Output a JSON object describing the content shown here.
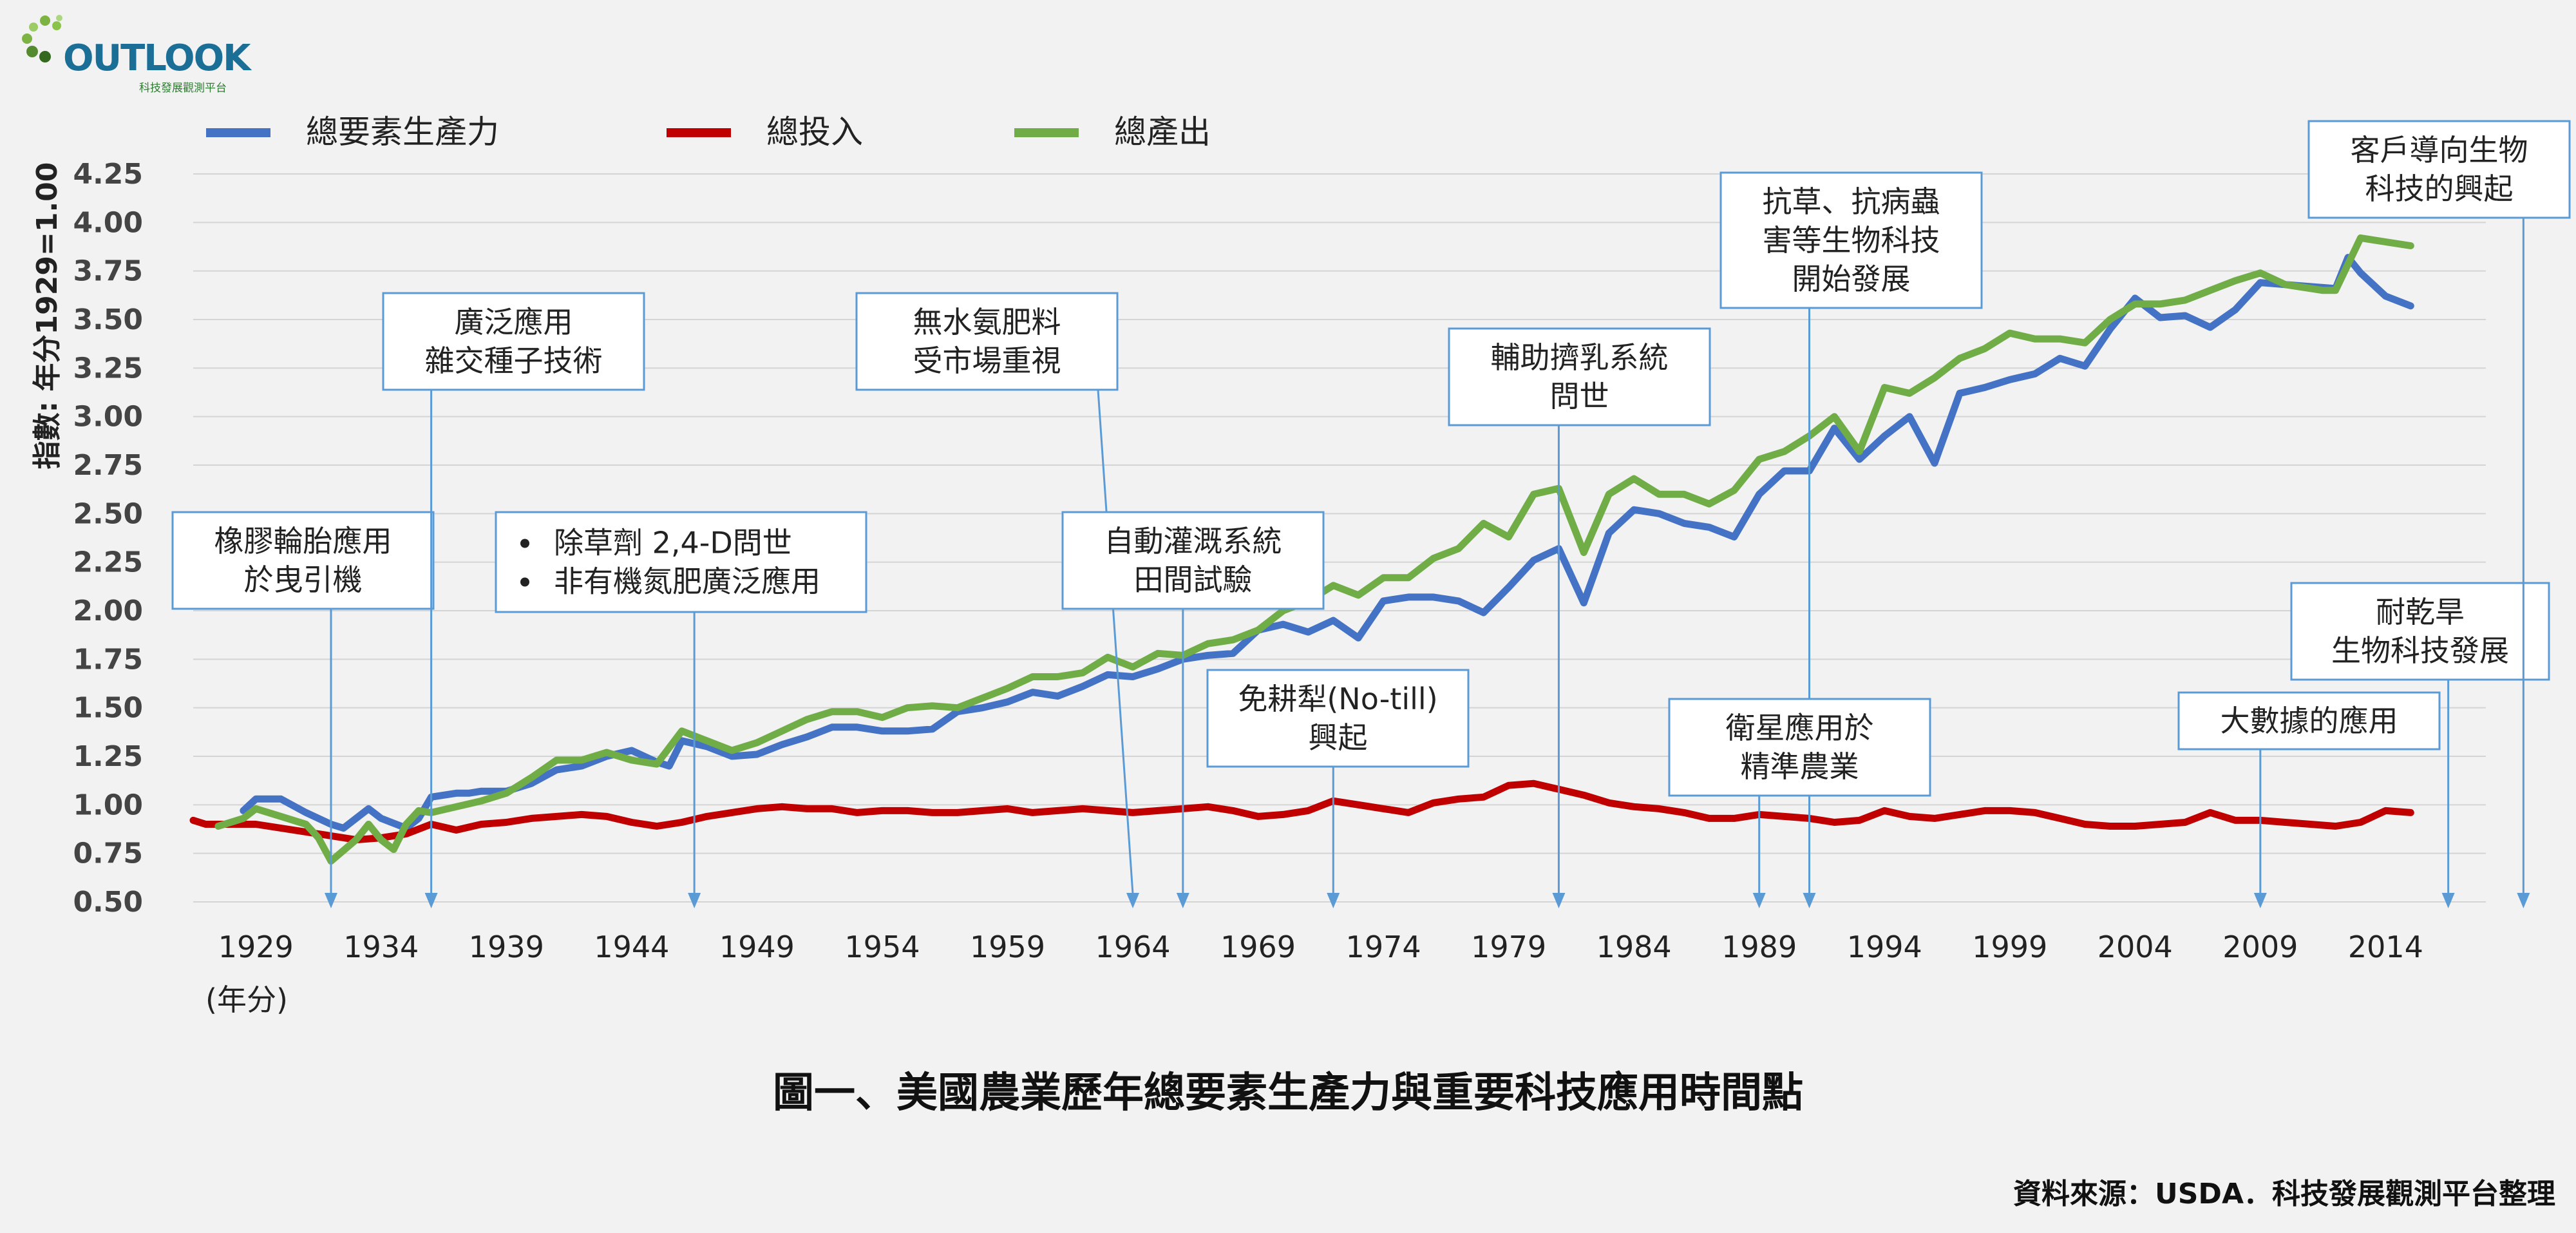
{
  "logo": {
    "word": "OUTLOOK",
    "subtitle": "科技發展觀測平台"
  },
  "legend": [
    {
      "label": "總要素生產力",
      "color": "#4472c4"
    },
    {
      "label": "總投入",
      "color": "#c00000"
    },
    {
      "label": "總產出",
      "color": "#70ad47"
    }
  ],
  "caption": "圖一、美國農業歷年總要素生產力與重要科技應用時間點",
  "source": "資料來源：USDA．科技發展觀測平台整理",
  "chart_data": {
    "type": "line",
    "title": "圖一、美國農業歷年總要素生產力與重要科技應用時間點",
    "ylabel": "指數: 年分1929=1.00",
    "xlabel": "(年分)",
    "ylim": [
      0.5,
      4.25
    ],
    "xlim": [
      1926.5,
      2018
    ],
    "yticks": [
      "0.50",
      "0.75",
      "1.00",
      "1.25",
      "1.50",
      "1.75",
      "2.00",
      "2.25",
      "2.50",
      "2.75",
      "3.00",
      "3.25",
      "3.50",
      "3.75",
      "4.00",
      "4.25"
    ],
    "xticks": [
      "1929",
      "1934",
      "1939",
      "1944",
      "1949",
      "1954",
      "1959",
      "1964",
      "1969",
      "1974",
      "1979",
      "1984",
      "1989",
      "1994",
      "1999",
      "2004",
      "2009",
      "2014"
    ],
    "grid": "horizontal",
    "legend_position": "top-left",
    "series": [
      {
        "name": "總要素生產力",
        "color": "#4472c4",
        "x": [
          1928.5,
          1929,
          1930,
          1931,
          1932,
          1932.5,
          1933,
          1933.5,
          1934,
          1935,
          1935.5,
          1936,
          1937,
          1937.5,
          1938,
          1939,
          1940,
          1941,
          1942,
          1943,
          1944,
          1945,
          1945.5,
          1946,
          1947,
          1948,
          1949,
          1950,
          1951,
          1952,
          1953,
          1954,
          1955,
          1956,
          1957,
          1958,
          1959,
          1960,
          1961,
          1962,
          1963,
          1964,
          1965,
          1966,
          1967,
          1968,
          1969,
          1970,
          1971,
          1972,
          1973,
          1974,
          1975,
          1976,
          1977,
          1978,
          1979,
          1980,
          1981,
          1982,
          1983,
          1984,
          1985,
          1986,
          1987,
          1988,
          1989,
          1990,
          1991,
          1992,
          1993,
          1994,
          1995,
          1996,
          1997,
          1998,
          1999,
          2000,
          2001,
          2002,
          2003,
          2004,
          2005,
          2006,
          2007,
          2008,
          2009,
          2010,
          2011,
          2012,
          2012.5,
          2013,
          2014,
          2015
        ],
        "values": [
          0.97,
          1.03,
          1.03,
          0.96,
          0.9,
          0.88,
          0.93,
          0.98,
          0.93,
          0.88,
          0.93,
          1.04,
          1.06,
          1.06,
          1.07,
          1.07,
          1.11,
          1.18,
          1.2,
          1.25,
          1.28,
          1.22,
          1.2,
          1.33,
          1.3,
          1.25,
          1.26,
          1.31,
          1.35,
          1.4,
          1.4,
          1.38,
          1.38,
          1.39,
          1.48,
          1.5,
          1.53,
          1.58,
          1.56,
          1.61,
          1.67,
          1.66,
          1.7,
          1.75,
          1.77,
          1.78,
          1.9,
          1.93,
          1.89,
          1.95,
          1.86,
          2.05,
          2.07,
          2.07,
          2.05,
          1.99,
          2.12,
          2.26,
          2.32,
          2.04,
          2.4,
          2.52,
          2.5,
          2.45,
          2.43,
          2.38,
          2.6,
          2.72,
          2.72,
          2.94,
          2.78,
          2.9,
          3.0,
          2.76,
          3.12,
          3.15,
          3.19,
          3.22,
          3.3,
          3.26,
          3.45,
          3.61,
          3.51,
          3.52,
          3.46,
          3.55,
          3.69,
          3.68,
          3.67,
          3.66,
          3.82,
          3.74,
          3.62,
          3.57
        ]
      },
      {
        "name": "總投入",
        "color": "#c00000",
        "x": [
          1926.5,
          1927,
          1929,
          1930,
          1931,
          1932,
          1933,
          1934,
          1935,
          1936,
          1937,
          1938,
          1939,
          1940,
          1941,
          1942,
          1943,
          1944,
          1945,
          1946,
          1947,
          1948,
          1949,
          1950,
          1951,
          1952,
          1953,
          1954,
          1955,
          1956,
          1957,
          1958,
          1959,
          1960,
          1961,
          1962,
          1963,
          1964,
          1965,
          1966,
          1967,
          1968,
          1969,
          1970,
          1971,
          1972,
          1973,
          1974,
          1975,
          1976,
          1977,
          1978,
          1979,
          1980,
          1981,
          1982,
          1983,
          1984,
          1985,
          1986,
          1987,
          1988,
          1989,
          1990,
          1991,
          1992,
          1993,
          1994,
          1995,
          1996,
          1997,
          1998,
          1999,
          2000,
          2001,
          2002,
          2003,
          2004,
          2005,
          2006,
          2007,
          2008,
          2009,
          2010,
          2011,
          2012,
          2013,
          2014,
          2015
        ],
        "values": [
          0.92,
          0.9,
          0.9,
          0.88,
          0.86,
          0.84,
          0.82,
          0.83,
          0.85,
          0.9,
          0.87,
          0.9,
          0.91,
          0.93,
          0.94,
          0.95,
          0.94,
          0.91,
          0.89,
          0.91,
          0.94,
          0.96,
          0.98,
          0.99,
          0.98,
          0.98,
          0.96,
          0.97,
          0.97,
          0.96,
          0.96,
          0.97,
          0.98,
          0.96,
          0.97,
          0.98,
          0.97,
          0.96,
          0.97,
          0.98,
          0.99,
          0.97,
          0.94,
          0.95,
          0.97,
          1.02,
          1.0,
          0.98,
          0.96,
          1.01,
          1.03,
          1.04,
          1.1,
          1.11,
          1.08,
          1.05,
          1.01,
          0.99,
          0.98,
          0.96,
          0.93,
          0.93,
          0.95,
          0.94,
          0.93,
          0.91,
          0.92,
          0.97,
          0.94,
          0.93,
          0.95,
          0.97,
          0.97,
          0.96,
          0.93,
          0.9,
          0.89,
          0.89,
          0.9,
          0.91,
          0.96,
          0.92,
          0.92,
          0.91,
          0.9,
          0.89,
          0.91,
          0.97,
          0.96
        ]
      },
      {
        "name": "總產出",
        "color": "#70ad47",
        "x": [
          1927.5,
          1928.5,
          1929,
          1930,
          1931,
          1931.5,
          1932,
          1933,
          1933.5,
          1934,
          1934.5,
          1935,
          1935.5,
          1936,
          1937,
          1938,
          1939,
          1940,
          1941,
          1942,
          1943,
          1944,
          1945,
          1946,
          1947,
          1948,
          1949,
          1950,
          1951,
          1952,
          1953,
          1954,
          1955,
          1956,
          1957,
          1958,
          1959,
          1960,
          1961,
          1962,
          1963,
          1964,
          1965,
          1966,
          1967,
          1968,
          1969,
          1970,
          1971,
          1972,
          1973,
          1974,
          1975,
          1976,
          1977,
          1978,
          1979,
          1980,
          1981,
          1982,
          1983,
          1984,
          1985,
          1986,
          1987,
          1988,
          1989,
          1990,
          1991,
          1992,
          1993,
          1994,
          1995,
          1996,
          1997,
          1998,
          1999,
          2000,
          2001,
          2002,
          2003,
          2004,
          2005,
          2006,
          2007,
          2008,
          2009,
          2010,
          2011,
          2011.5,
          2012,
          2013,
          2014,
          2015
        ],
        "values": [
          0.89,
          0.93,
          0.98,
          0.94,
          0.9,
          0.83,
          0.71,
          0.82,
          0.9,
          0.82,
          0.77,
          0.9,
          0.97,
          0.96,
          0.99,
          1.02,
          1.06,
          1.14,
          1.23,
          1.23,
          1.27,
          1.23,
          1.21,
          1.38,
          1.33,
          1.28,
          1.32,
          1.38,
          1.44,
          1.48,
          1.48,
          1.45,
          1.5,
          1.51,
          1.5,
          1.55,
          1.6,
          1.66,
          1.66,
          1.68,
          1.76,
          1.71,
          1.78,
          1.77,
          1.83,
          1.85,
          1.9,
          2.0,
          2.05,
          2.13,
          2.08,
          2.17,
          2.17,
          2.27,
          2.32,
          2.45,
          2.38,
          2.6,
          2.63,
          2.3,
          2.6,
          2.68,
          2.6,
          2.6,
          2.55,
          2.62,
          2.78,
          2.82,
          2.9,
          3.0,
          2.82,
          3.15,
          3.12,
          3.2,
          3.3,
          3.35,
          3.43,
          3.4,
          3.4,
          3.38,
          3.5,
          3.58,
          3.58,
          3.6,
          3.65,
          3.7,
          3.74,
          3.68,
          3.66,
          3.65,
          3.65,
          3.92,
          3.9,
          3.88
        ]
      }
    ],
    "annotations": [
      {
        "lines": [
          "橡膠輪胎應用",
          "於曳引機"
        ],
        "year": 1932
      },
      {
        "lines": [
          "廣泛應用",
          "雜交種子技術"
        ],
        "year": 1936
      },
      {
        "lines": [
          "除草劑 2,4-D問世",
          "非有機氮肥廣泛應用"
        ],
        "bullets": true,
        "year": 1946.5
      },
      {
        "lines": [
          "無水氨肥料",
          "受市場重視"
        ],
        "year": 1964
      },
      {
        "lines": [
          "自動灌溉系統",
          "田間試驗"
        ],
        "year": 1966
      },
      {
        "lines": [
          "免耕犁(No-till)",
          "興起"
        ],
        "year": 1972
      },
      {
        "lines": [
          "輔助擠乳系統",
          "問世"
        ],
        "year": 1981
      },
      {
        "lines": [
          "抗草、抗病蟲",
          "害等生物科技",
          "開始發展"
        ],
        "year": 1991
      },
      {
        "lines": [
          "衛星應用於",
          "精準農業"
        ],
        "year": 1989
      },
      {
        "lines": [
          "大數據的應用"
        ],
        "year": 2009
      },
      {
        "lines": [
          "耐乾旱",
          "生物科技發展"
        ],
        "year": 2016.5
      },
      {
        "lines": [
          "客戶導向生物",
          "科技的興起"
        ],
        "year": 2019.5
      }
    ]
  }
}
